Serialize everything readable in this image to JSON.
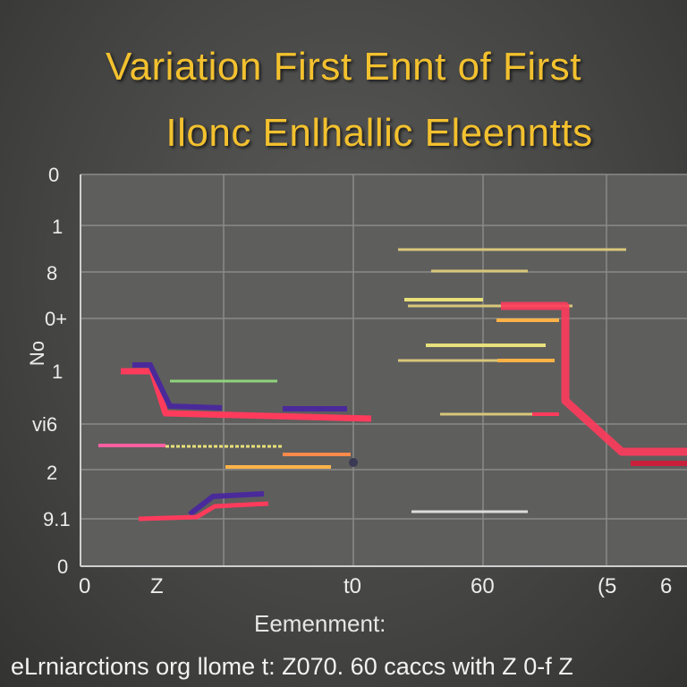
{
  "chart_data": {
    "type": "line",
    "title": "Variation First Ennt of First",
    "subtitle": "Ilonc Enlhallic Eleenntts",
    "xlabel": "Eemenment:",
    "ylabel": "No",
    "x_tick_labels": [
      "0",
      "Z",
      "t0",
      "60",
      "(5",
      "6"
    ],
    "y_tick_labels": [
      "0",
      "1",
      "8",
      "0+",
      "1",
      "vi6",
      "2",
      "9.1",
      "0"
    ],
    "footer": "eLrniarctions org llome t: Z070. 60 caccs with Z 0-f Z",
    "grid": true,
    "legend": "none",
    "series_colors": [
      "#ff3b5c",
      "#4a2a9a",
      "#ffb347",
      "#e8e07a",
      "#8fd37a",
      "#ff5fa0"
    ]
  }
}
